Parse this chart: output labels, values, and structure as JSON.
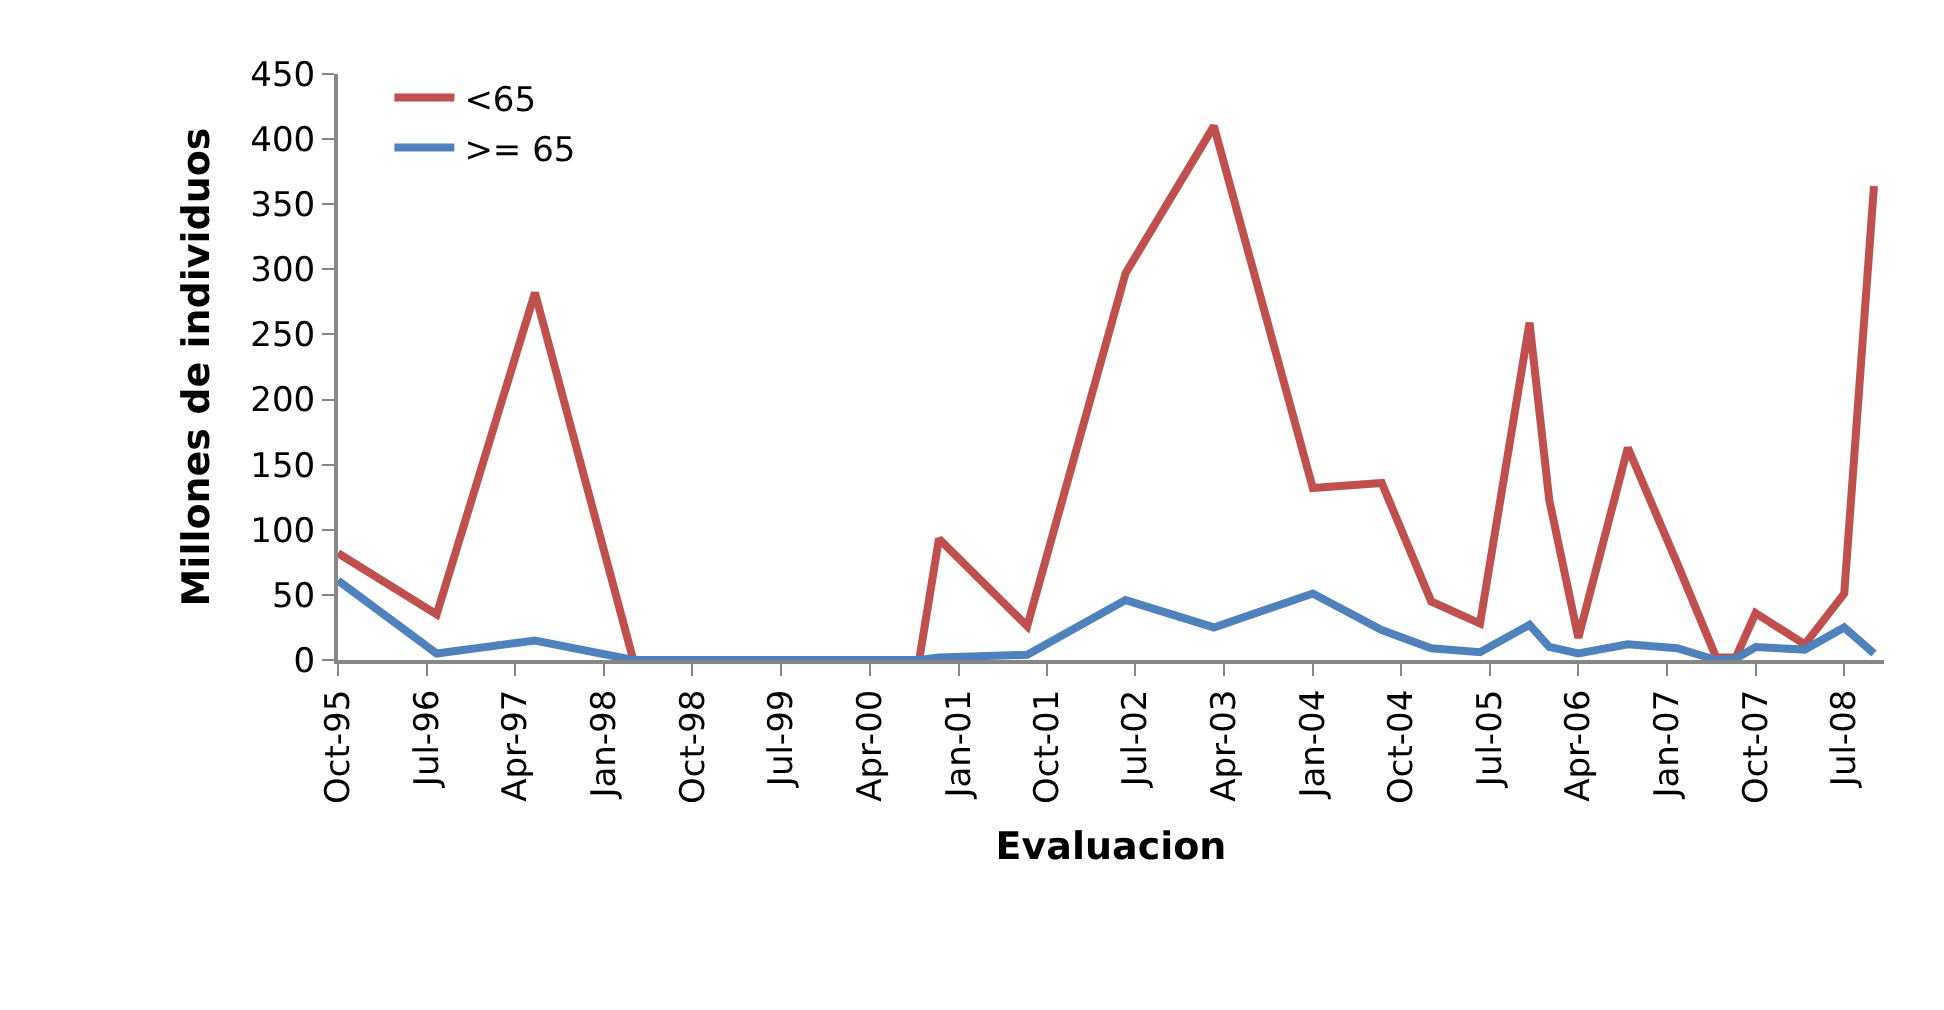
{
  "chart_data": {
    "type": "line",
    "xlabel": "Evaluacion",
    "ylabel": "Millones de individuos",
    "x": [
      "1995-10",
      "1996-08",
      "1997-06",
      "1998-04",
      "2000-09",
      "2000-11",
      "2001-08",
      "2002-06",
      "2003-03",
      "2004-01",
      "2004-08",
      "2005-01",
      "2005-06",
      "2005-11",
      "2006-01",
      "2006-04",
      "2006-09",
      "2007-02",
      "2007-06",
      "2007-08",
      "2007-10",
      "2008-03",
      "2008-07",
      "2008-10"
    ],
    "series": [
      {
        "name": "<65",
        "color": "#c0504d",
        "values": [
          82,
          35,
          282,
          0,
          0,
          93,
          26,
          297,
          410,
          132,
          136,
          45,
          28,
          259,
          123,
          17,
          163,
          74,
          2,
          2,
          36,
          12,
          51,
          364
        ]
      },
      {
        "name": ">= 65",
        "color": "#4f81bd",
        "values": [
          61,
          5,
          15,
          0,
          0,
          2,
          4,
          46,
          25,
          51,
          23,
          9,
          6,
          27,
          10,
          5,
          12,
          9,
          0,
          1,
          10,
          8,
          25,
          5
        ]
      }
    ],
    "xlim": [
      "1995-10",
      "2008-11"
    ],
    "xticks": [
      {
        "value": "1995-10",
        "label": "Oct-95"
      },
      {
        "value": "1996-07",
        "label": "Jul-96"
      },
      {
        "value": "1997-04",
        "label": "Apr-97"
      },
      {
        "value": "1998-01",
        "label": "Jan-98"
      },
      {
        "value": "1998-10",
        "label": "Oct-98"
      },
      {
        "value": "1999-07",
        "label": "Jul-99"
      },
      {
        "value": "2000-04",
        "label": "Apr-00"
      },
      {
        "value": "2001-01",
        "label": "Jan-01"
      },
      {
        "value": "2001-10",
        "label": "Oct-01"
      },
      {
        "value": "2002-07",
        "label": "Jul-02"
      },
      {
        "value": "2003-04",
        "label": "Apr-03"
      },
      {
        "value": "2004-01",
        "label": "Jan-04"
      },
      {
        "value": "2004-10",
        "label": "Oct-04"
      },
      {
        "value": "2005-07",
        "label": "Jul-05"
      },
      {
        "value": "2006-04",
        "label": "Apr-06"
      },
      {
        "value": "2007-01",
        "label": "Jan-07"
      },
      {
        "value": "2007-10",
        "label": "Oct-07"
      },
      {
        "value": "2008-07",
        "label": "Jul-08"
      }
    ],
    "ylim": [
      0,
      450
    ],
    "yticks": [
      0,
      50,
      100,
      150,
      200,
      250,
      300,
      350,
      400,
      450
    ],
    "legend": "top left",
    "marker": "none",
    "line_style": "solid"
  }
}
